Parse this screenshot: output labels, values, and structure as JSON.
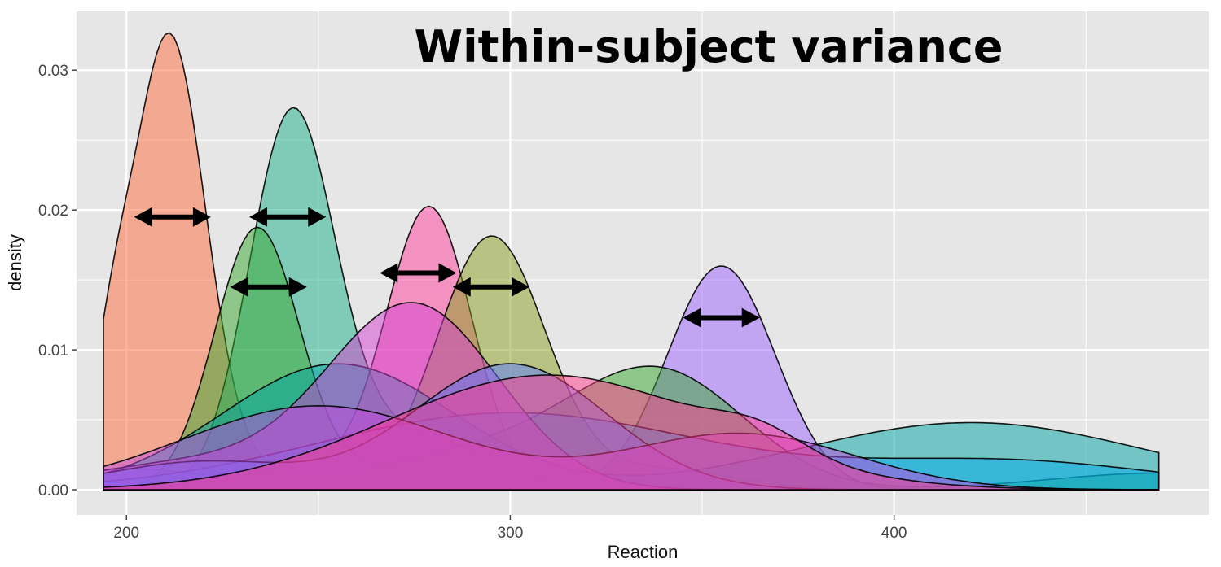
{
  "chart_data": {
    "type": "area",
    "title": "Within-subject variance",
    "xlabel": "Reaction",
    "ylabel": "density",
    "xlim": [
      187,
      482
    ],
    "ylim": [
      -0.0018,
      0.0342
    ],
    "x_ticks": [
      200,
      300,
      400
    ],
    "y_ticks": [
      0.0,
      0.01,
      0.02,
      0.03
    ],
    "x_tick_labels": [
      "200",
      "300",
      "400"
    ],
    "y_tick_labels": [
      "0.00",
      "0.01",
      "0.02",
      "0.03"
    ],
    "grid": true,
    "legend": "none",
    "series": [
      {
        "color": "#ff6a3d",
        "components": [
          {
            "mu": 211,
            "sd": 9.5,
            "h": 0.032
          },
          {
            "mu": 196,
            "sd": 5,
            "h": 0.006
          },
          {
            "mu": 240,
            "sd": 25,
            "h": 0.0012
          }
        ]
      },
      {
        "color": "#1aaf8a",
        "components": [
          {
            "mu": 243,
            "sd": 11,
            "h": 0.026
          },
          {
            "mu": 270,
            "sd": 18,
            "h": 0.004
          }
        ]
      },
      {
        "color": "#ff3d9a",
        "components": [
          {
            "mu": 279,
            "sd": 11,
            "h": 0.0195
          },
          {
            "mu": 250,
            "sd": 25,
            "h": 0.0015
          }
        ]
      },
      {
        "color": "#8aa020",
        "components": [
          {
            "mu": 295,
            "sd": 14,
            "h": 0.018
          },
          {
            "mu": 338,
            "sd": 20,
            "h": 0.0015
          }
        ]
      },
      {
        "color": "#9b63ff",
        "components": [
          {
            "mu": 355,
            "sd": 14,
            "h": 0.016
          },
          {
            "mu": 270,
            "sd": 20,
            "h": 0.0045
          },
          {
            "mu": 200,
            "sd": 20,
            "h": 0.0015
          }
        ]
      },
      {
        "color": "#38a82e",
        "components": [
          {
            "mu": 234,
            "sd": 11,
            "h": 0.0185
          },
          {
            "mu": 340,
            "sd": 22,
            "h": 0.0075
          },
          {
            "mu": 300,
            "sd": 30,
            "h": 0.003
          },
          {
            "mu": 470,
            "sd": 30,
            "h": 0.0012
          }
        ]
      },
      {
        "color": "#00a3a3",
        "components": [
          {
            "mu": 255,
            "sd": 30,
            "h": 0.009
          },
          {
            "mu": 420,
            "sd": 45,
            "h": 0.0048
          }
        ]
      },
      {
        "color": "#00aaee",
        "components": [
          {
            "mu": 300,
            "sd": 50,
            "h": 0.0055
          },
          {
            "mu": 430,
            "sd": 40,
            "h": 0.002
          }
        ]
      },
      {
        "color": "#d43fd0",
        "components": [
          {
            "mu": 275,
            "sd": 22,
            "h": 0.013
          },
          {
            "mu": 220,
            "sd": 30,
            "h": 0.002
          }
        ]
      },
      {
        "color": "#5a7cff",
        "components": [
          {
            "mu": 300,
            "sd": 25,
            "h": 0.009
          },
          {
            "mu": 220,
            "sd": 25,
            "h": 0.002
          }
        ]
      },
      {
        "color": "#c04ae0",
        "components": [
          {
            "mu": 250,
            "sd": 35,
            "h": 0.006
          },
          {
            "mu": 360,
            "sd": 30,
            "h": 0.004
          }
        ]
      },
      {
        "color": "#ff3a8c",
        "components": [
          {
            "mu": 310,
            "sd": 42,
            "h": 0.0082
          },
          {
            "mu": 365,
            "sd": 12,
            "h": 0.0015
          }
        ]
      }
    ],
    "arrows": [
      {
        "x": 212,
        "y": 0.0195,
        "half_width": 10
      },
      {
        "x": 242,
        "y": 0.0195,
        "half_width": 10
      },
      {
        "x": 237,
        "y": 0.0145,
        "half_width": 10
      },
      {
        "x": 276,
        "y": 0.0155,
        "half_width": 10
      },
      {
        "x": 295,
        "y": 0.0145,
        "half_width": 10
      },
      {
        "x": 355,
        "y": 0.0123,
        "half_width": 10
      }
    ]
  }
}
